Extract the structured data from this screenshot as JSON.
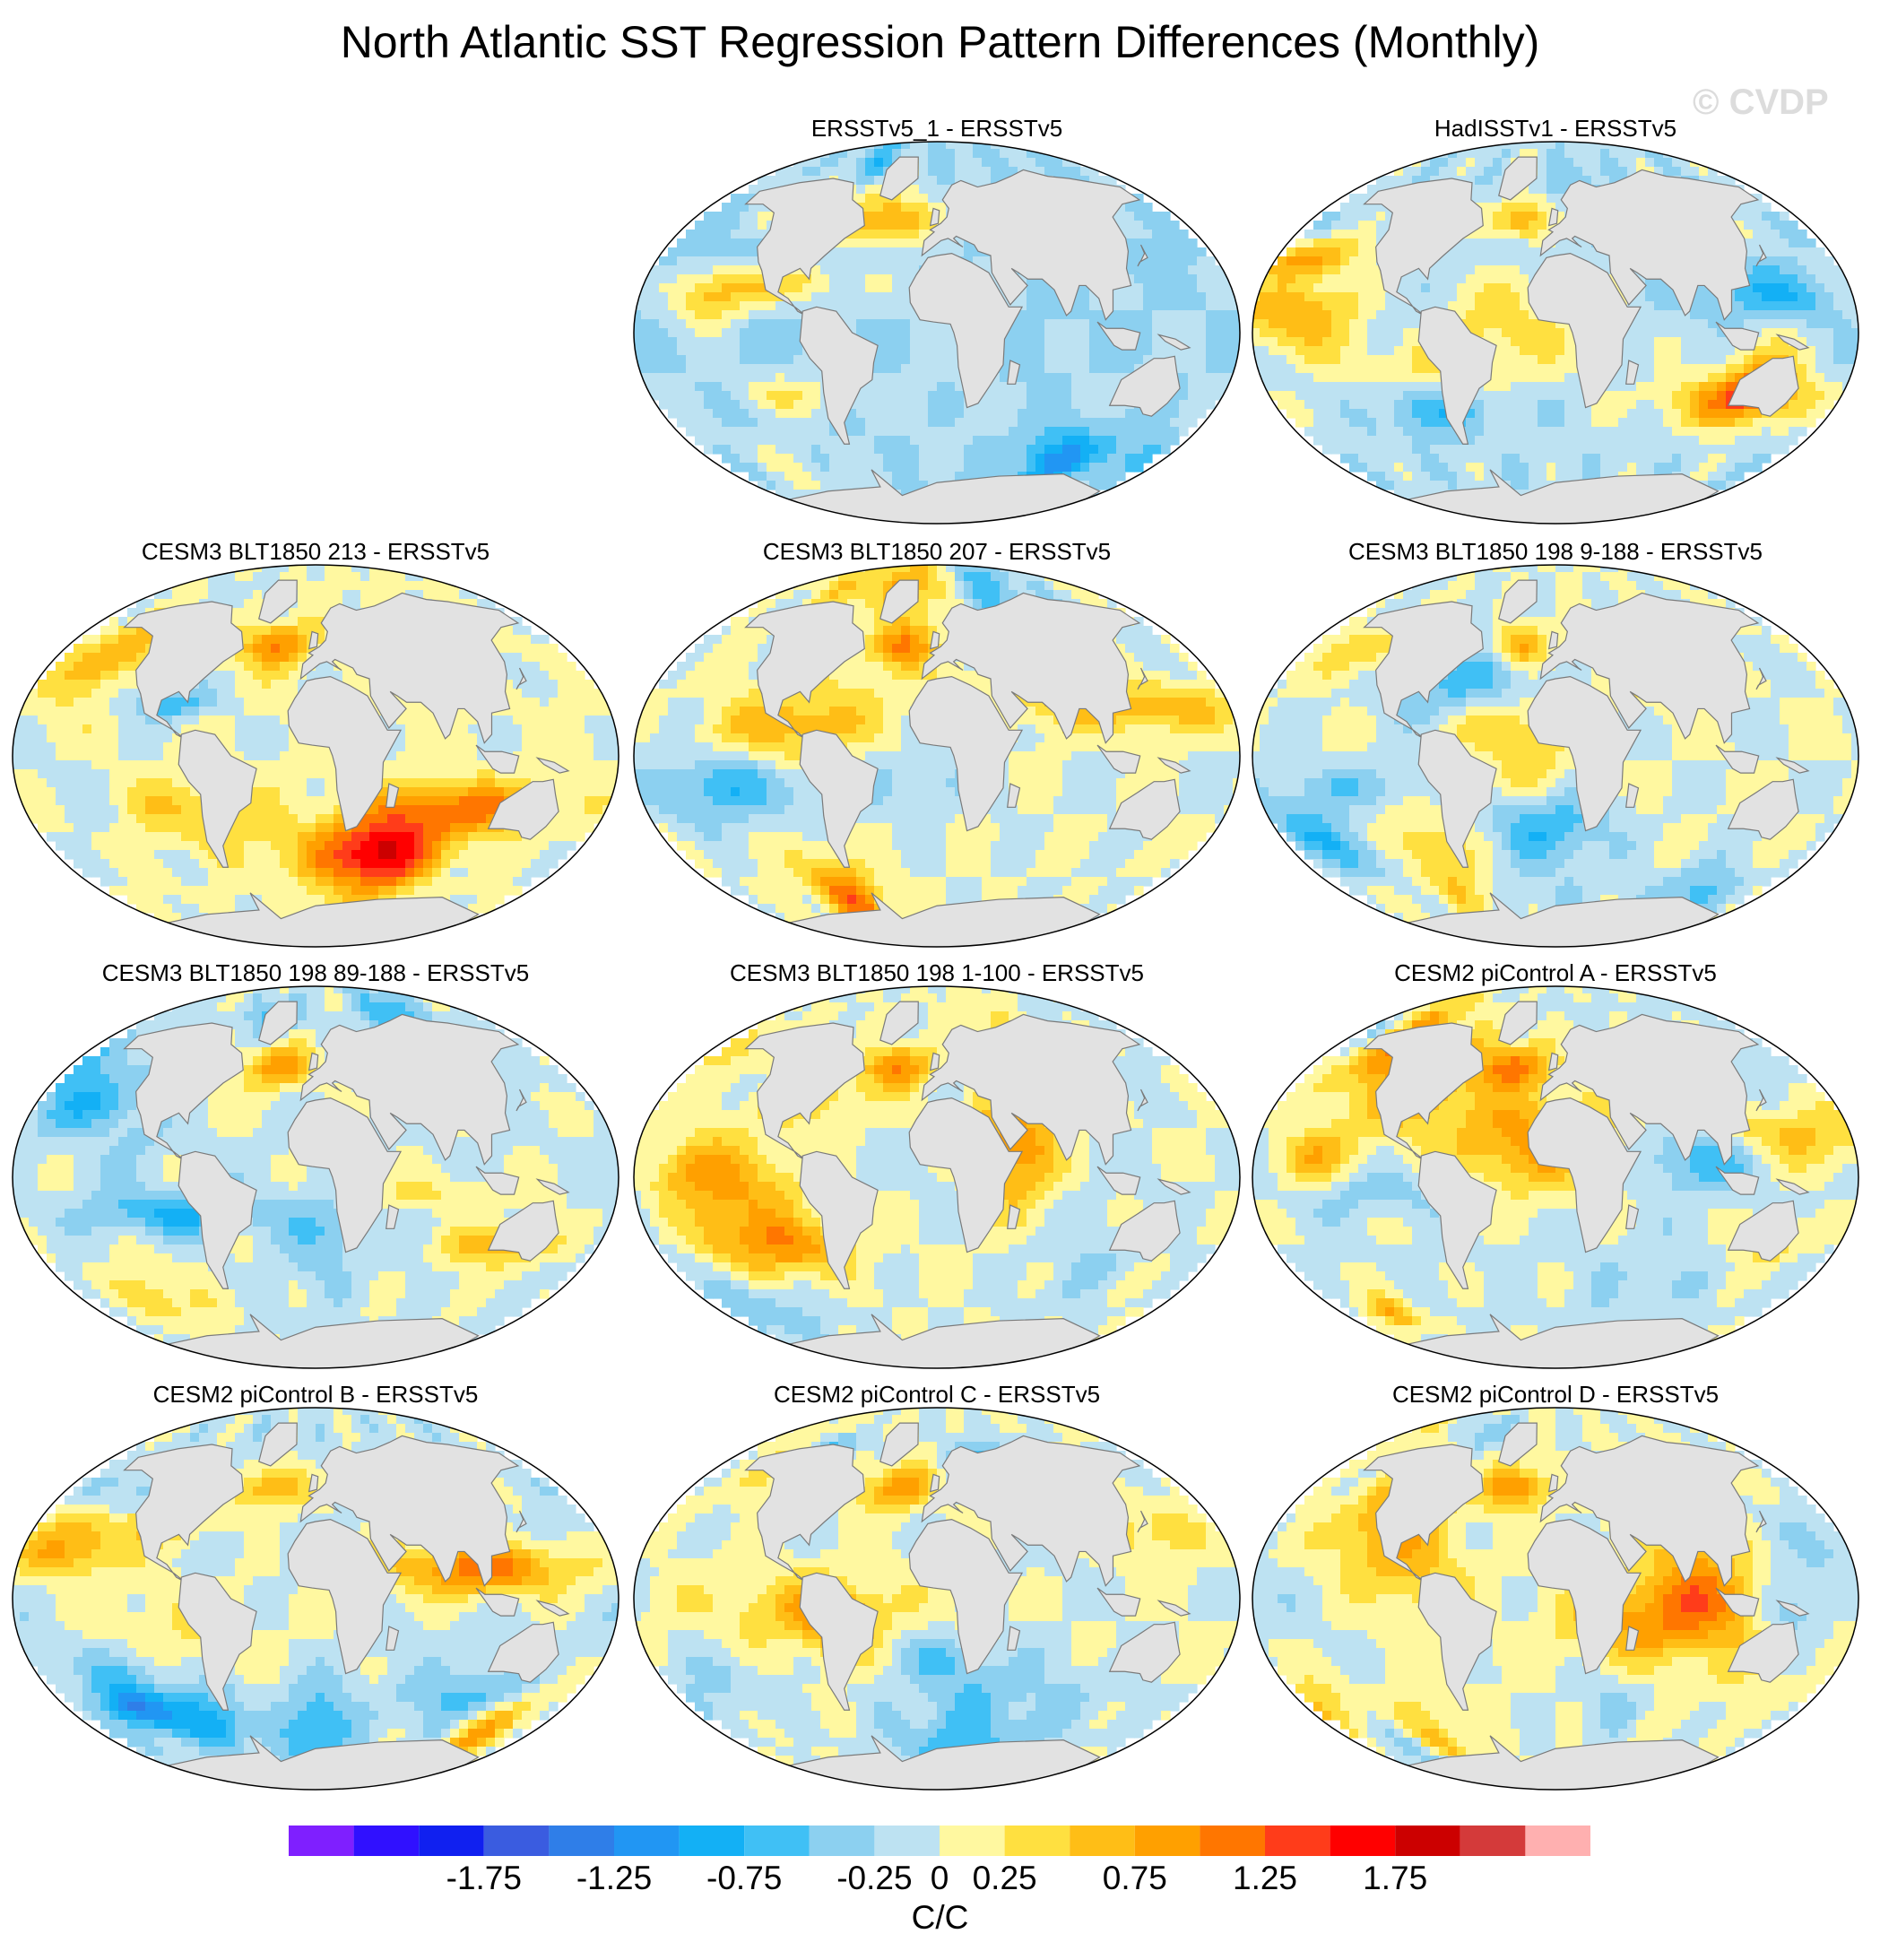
{
  "title": "North Atlantic SST Regression Pattern Differences (Monthly)",
  "watermark": "© CVDP",
  "panels": [
    {
      "id": "p1",
      "title": "ERSSTv5_1 - ERSSTv5",
      "seed": 11,
      "bias": -0.25
    },
    {
      "id": "p2",
      "title": "HadISSTv1 - ERSSTv5",
      "seed": 23,
      "bias": -0.15
    },
    {
      "id": "p3",
      "title": "CESM3 BLT1850 213 - ERSSTv5",
      "seed": 37,
      "bias": 0.05
    },
    {
      "id": "p4",
      "title": "CESM3 BLT1850 207 - ERSSTv5",
      "seed": 41,
      "bias": 0.0
    },
    {
      "id": "p5",
      "title": "CESM3 BLT1850 198 9-188 - ERSSTv5",
      "seed": 53,
      "bias": 0.0
    },
    {
      "id": "p6",
      "title": "CESM3 BLT1850 198 89-188 - ERSSTv5",
      "seed": 67,
      "bias": -0.05
    },
    {
      "id": "p7",
      "title": "CESM3 BLT1850 198 1-100 - ERSSTv5",
      "seed": 71,
      "bias": 0.0
    },
    {
      "id": "p8",
      "title": "CESM2 piControl A - ERSSTv5",
      "seed": 83,
      "bias": -0.05
    },
    {
      "id": "p9",
      "title": "CESM2 piControl B - ERSSTv5",
      "seed": 97,
      "bias": -0.1
    },
    {
      "id": "p10",
      "title": "CESM2 piControl C - ERSSTv5",
      "seed": 101,
      "bias": 0.0
    },
    {
      "id": "p11",
      "title": "CESM2 piControl D - ERSSTv5",
      "seed": 113,
      "bias": 0.0
    }
  ],
  "colorbar": {
    "colors": [
      "#7f1fff",
      "#3010ff",
      "#1020f0",
      "#3a5ce0",
      "#2f7ee8",
      "#2196f3",
      "#13b0f5",
      "#40c0f5",
      "#8cd0f0",
      "#bde2f2",
      "#fff8a0",
      "#ffe040",
      "#ffbe16",
      "#ffa000",
      "#ff7600",
      "#ff3c1a",
      "#ff0000",
      "#cc0000",
      "#d43a3a",
      "#ffb0b0"
    ],
    "boundaries": [
      -2.25,
      -2.0,
      -1.75,
      -1.5,
      -1.25,
      -1.0,
      -0.75,
      -0.5,
      -0.25,
      0.0,
      0.25,
      0.5,
      0.75,
      1.0,
      1.25,
      1.5,
      1.75,
      2.0,
      2.25
    ],
    "tick_labels": [
      "-1.75",
      "-1.25",
      "-0.75",
      "-0.25",
      "0",
      "0.25",
      "0.75",
      "1.25",
      "1.75"
    ],
    "units": "C/C"
  },
  "colors": {
    "land": "#e2e2e2",
    "coast": "#7a7a7a",
    "frame": "#000000"
  }
}
